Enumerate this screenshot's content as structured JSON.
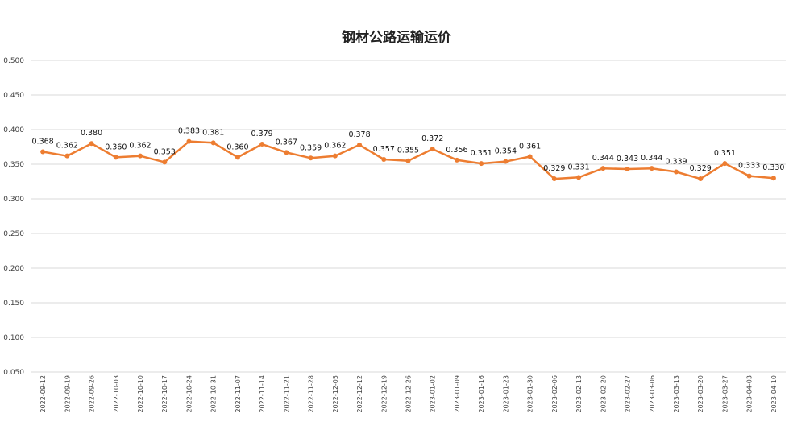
{
  "chart_data": {
    "type": "line",
    "title": "钢材公路运输运价",
    "xlabel": "",
    "ylabel": "",
    "ylim": [
      0.05,
      0.5
    ],
    "yticks": [
      "0.050",
      "0.100",
      "0.150",
      "0.200",
      "0.250",
      "0.300",
      "0.350",
      "0.400",
      "0.450",
      "0.500"
    ],
    "grid": true,
    "legend": "none",
    "series": [
      {
        "name": "钢材公路运输运价",
        "color": "#ED7D31",
        "categories": [
          "2022-09-12",
          "2022-09-19",
          "2022-09-26",
          "2022-10-03",
          "2022-10-10",
          "2022-10-17",
          "2022-10-24",
          "2022-10-31",
          "2022-11-07",
          "2022-11-14",
          "2022-11-21",
          "2022-11-28",
          "2022-12-05",
          "2022-12-12",
          "2022-12-19",
          "2022-12-26",
          "2023-01-02",
          "2023-01-09",
          "2023-01-16",
          "2023-01-23",
          "2023-01-30",
          "2023-02-06",
          "2023-02-13",
          "2023-02-20",
          "2023-02-27",
          "2023-03-06",
          "2023-03-13",
          "2023-03-20",
          "2023-03-27",
          "2023-04-03",
          "2023-04-10"
        ],
        "values": [
          0.368,
          0.362,
          0.38,
          0.36,
          0.362,
          0.353,
          0.383,
          0.381,
          0.36,
          0.379,
          0.367,
          0.359,
          0.362,
          0.378,
          0.357,
          0.355,
          0.372,
          0.356,
          0.351,
          0.354,
          0.361,
          0.329,
          0.331,
          0.344,
          0.343,
          0.344,
          0.339,
          0.329,
          0.351,
          0.333,
          0.33
        ],
        "labels": [
          "0.368",
          "0.362",
          "0.380",
          "0.360",
          "0.362",
          "0.353",
          "0.383",
          "0.381",
          "0.360",
          "0.379",
          "0.367",
          "0.359",
          "0.362",
          "0.378",
          "0.357",
          "0.355",
          "0.372",
          "0.356",
          "0.351",
          "0.354",
          "0.361",
          "0.329",
          "0.331",
          "0.344",
          "0.343",
          "0.344",
          "0.339",
          "0.329",
          "0.351",
          "0.333",
          "0.330"
        ]
      }
    ]
  }
}
